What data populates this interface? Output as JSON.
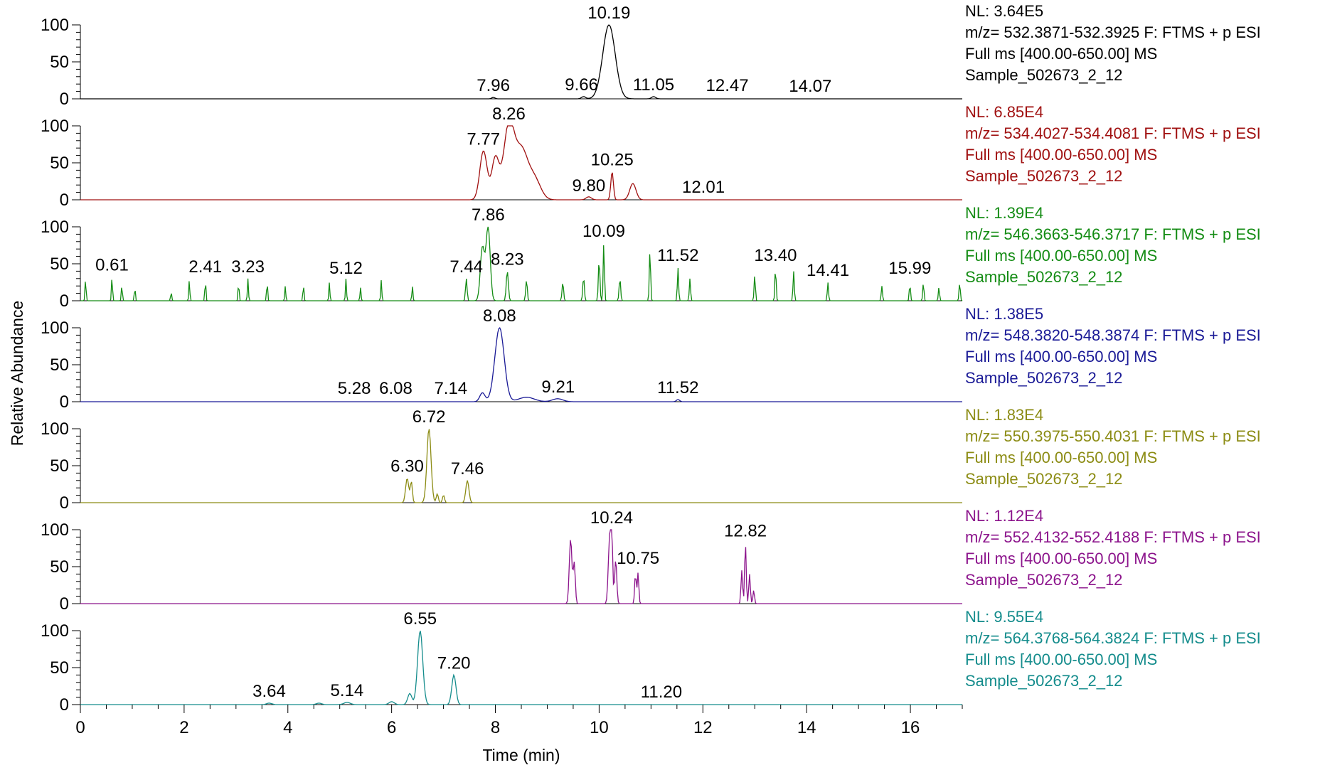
{
  "chart_data": {
    "type": "line",
    "xlabel": "Time (min)",
    "ylabel": "Relative Abundance",
    "xlim": [
      0,
      17
    ],
    "ylim": [
      0,
      100
    ],
    "xticks": [
      0,
      2,
      4,
      6,
      8,
      10,
      12,
      14,
      16
    ],
    "yticks": [
      0,
      50,
      100
    ],
    "panels": [
      {
        "color": "#000000",
        "nl": "NL: 3.64E5",
        "scan": "m/z= 532.3871-532.3925 F: FTMS + p ESI",
        "ms": "Full ms [400.00-650.00]  MS",
        "sample": "Sample_502673_2_12",
        "labels": [
          {
            "t": 7.96,
            "text": "7.96",
            "y": 2
          },
          {
            "t": 9.66,
            "text": "9.66",
            "y": 3
          },
          {
            "t": 10.19,
            "text": "10.19",
            "y": 100
          },
          {
            "t": 11.05,
            "text": "11.05",
            "y": 3
          },
          {
            "t": 12.47,
            "text": "12.47",
            "y": 2
          },
          {
            "t": 14.07,
            "text": "14.07",
            "y": 1
          }
        ],
        "peaks": [
          [
            10.19,
            100,
            0.12
          ],
          [
            9.7,
            3,
            0.04
          ],
          [
            11.05,
            3,
            0.04
          ],
          [
            7.96,
            2,
            0.03
          ]
        ]
      },
      {
        "color": "#a01010",
        "nl": "NL: 6.85E4",
        "scan": "m/z= 534.4027-534.4081 F: FTMS + p ESI",
        "ms": "Full ms [400.00-650.00]  MS",
        "sample": "Sample_502673_2_12",
        "labels": [
          {
            "t": 7.77,
            "text": "7.77",
            "y": 66
          },
          {
            "t": 8.26,
            "text": "8.26",
            "y": 100
          },
          {
            "t": 9.8,
            "text": "9.80",
            "y": 3
          },
          {
            "t": 10.25,
            "text": "10.25",
            "y": 38
          },
          {
            "t": 12.01,
            "text": "12.01",
            "y": 1
          }
        ],
        "peaks": [
          [
            7.77,
            66,
            0.07
          ],
          [
            8.0,
            56,
            0.07
          ],
          [
            8.26,
            100,
            0.1
          ],
          [
            8.5,
            65,
            0.12
          ],
          [
            8.75,
            28,
            0.12
          ],
          [
            9.8,
            4,
            0.05
          ],
          [
            10.25,
            38,
            0.025
          ],
          [
            10.65,
            22,
            0.06
          ]
        ]
      },
      {
        "color": "#148c14",
        "nl": "NL: 1.39E4",
        "scan": "m/z= 546.3663-546.3717 F: FTMS + p ESI",
        "ms": "Full ms [400.00-650.00]  MS",
        "sample": "Sample_502673_2_12",
        "labels": [
          {
            "t": 0.61,
            "text": "0.61",
            "y": 32
          },
          {
            "t": 2.41,
            "text": "2.41",
            "y": 30
          },
          {
            "t": 3.23,
            "text": "3.23",
            "y": 30
          },
          {
            "t": 5.12,
            "text": "5.12",
            "y": 28
          },
          {
            "t": 7.44,
            "text": "7.44",
            "y": 30
          },
          {
            "t": 7.86,
            "text": "7.86",
            "y": 100
          },
          {
            "t": 8.23,
            "text": "8.23",
            "y": 40
          },
          {
            "t": 10.09,
            "text": "10.09",
            "y": 78
          },
          {
            "t": 11.52,
            "text": "11.52",
            "y": 45
          },
          {
            "t": 13.4,
            "text": "13.40",
            "y": 45
          },
          {
            "t": 14.41,
            "text": "14.41",
            "y": 25
          },
          {
            "t": 15.99,
            "text": "15.99",
            "y": 28
          }
        ],
        "peaks": [
          [
            0.1,
            30,
            0.01
          ],
          [
            0.61,
            33,
            0.01
          ],
          [
            0.8,
            22,
            0.01
          ],
          [
            1.05,
            18,
            0.01
          ],
          [
            1.75,
            12,
            0.01
          ],
          [
            2.1,
            28,
            0.01
          ],
          [
            2.41,
            28,
            0.01
          ],
          [
            3.05,
            25,
            0.01
          ],
          [
            3.23,
            30,
            0.01
          ],
          [
            3.6,
            26,
            0.01
          ],
          [
            3.95,
            20,
            0.01
          ],
          [
            4.3,
            22,
            0.01
          ],
          [
            4.8,
            25,
            0.01
          ],
          [
            5.12,
            30,
            0.01
          ],
          [
            5.4,
            18,
            0.01
          ],
          [
            5.8,
            28,
            0.01
          ],
          [
            6.4,
            20,
            0.01
          ],
          [
            7.44,
            30,
            0.015
          ],
          [
            7.75,
            72,
            0.04
          ],
          [
            7.86,
            100,
            0.04
          ],
          [
            8.23,
            40,
            0.02
          ],
          [
            8.6,
            28,
            0.015
          ],
          [
            9.3,
            25,
            0.015
          ],
          [
            9.7,
            32,
            0.015
          ],
          [
            10.0,
            55,
            0.015
          ],
          [
            10.09,
            78,
            0.012
          ],
          [
            10.4,
            30,
            0.015
          ],
          [
            10.98,
            70,
            0.012
          ],
          [
            11.52,
            45,
            0.012
          ],
          [
            11.75,
            30,
            0.012
          ],
          [
            13.0,
            35,
            0.012
          ],
          [
            13.4,
            45,
            0.012
          ],
          [
            13.75,
            40,
            0.012
          ],
          [
            14.41,
            25,
            0.012
          ],
          [
            15.45,
            20,
            0.012
          ],
          [
            15.99,
            22,
            0.012
          ],
          [
            16.25,
            24,
            0.012
          ],
          [
            16.55,
            18,
            0.012
          ],
          [
            16.95,
            25,
            0.012
          ]
        ]
      },
      {
        "color": "#1a1a96",
        "nl": "NL: 1.38E5",
        "scan": "m/z= 548.3820-548.3874 F: FTMS + p ESI",
        "ms": "Full ms [400.00-650.00]  MS",
        "sample": "Sample_502673_2_12",
        "labels": [
          {
            "t": 5.28,
            "text": "5.28",
            "y": 2
          },
          {
            "t": 6.08,
            "text": "6.08",
            "y": 2
          },
          {
            "t": 7.14,
            "text": "7.14",
            "y": 2
          },
          {
            "t": 8.08,
            "text": "8.08",
            "y": 100
          },
          {
            "t": 9.21,
            "text": "9.21",
            "y": 4
          },
          {
            "t": 11.52,
            "text": "11.52",
            "y": 3
          }
        ],
        "peaks": [
          [
            8.08,
            100,
            0.09
          ],
          [
            7.75,
            12,
            0.05
          ],
          [
            8.6,
            6,
            0.15
          ],
          [
            9.2,
            4,
            0.1
          ],
          [
            11.52,
            3,
            0.03
          ]
        ]
      },
      {
        "color": "#8c8c14",
        "nl": "NL: 1.83E4",
        "scan": "m/z= 550.3975-550.4031 F: FTMS + p ESI",
        "ms": "Full ms [400.00-650.00]  MS",
        "sample": "Sample_502673_2_12",
        "labels": [
          {
            "t": 6.3,
            "text": "6.30",
            "y": 33
          },
          {
            "t": 6.72,
            "text": "6.72",
            "y": 100
          },
          {
            "t": 7.46,
            "text": "7.46",
            "y": 30
          }
        ],
        "peaks": [
          [
            6.3,
            33,
            0.03
          ],
          [
            6.38,
            28,
            0.02
          ],
          [
            6.72,
            100,
            0.04
          ],
          [
            6.88,
            12,
            0.02
          ],
          [
            7.0,
            10,
            0.02
          ],
          [
            7.46,
            30,
            0.03
          ]
        ]
      },
      {
        "color": "#8c148c",
        "nl": "NL: 1.12E4",
        "scan": "m/z= 552.4132-552.4188 F: FTMS + p ESI",
        "ms": "Full ms [400.00-650.00]  MS",
        "sample": "Sample_502673_2_12",
        "labels": [
          {
            "t": 10.24,
            "text": "10.24",
            "y": 100
          },
          {
            "t": 10.75,
            "text": "10.75",
            "y": 45
          },
          {
            "t": 12.82,
            "text": "12.82",
            "y": 82
          }
        ],
        "peaks": [
          [
            9.45,
            88,
            0.025
          ],
          [
            9.52,
            55,
            0.02
          ],
          [
            10.2,
            80,
            0.025
          ],
          [
            10.24,
            100,
            0.02
          ],
          [
            10.32,
            60,
            0.02
          ],
          [
            10.7,
            40,
            0.015
          ],
          [
            10.75,
            42,
            0.015
          ],
          [
            12.75,
            45,
            0.015
          ],
          [
            12.82,
            82,
            0.015
          ],
          [
            12.9,
            40,
            0.015
          ],
          [
            12.98,
            18,
            0.015
          ]
        ]
      },
      {
        "color": "#148c8c",
        "nl": "NL: 9.55E4",
        "scan": "m/z= 564.3768-564.3824 F: FTMS + p ESI",
        "ms": "Full ms [400.00-650.00]  MS",
        "sample": "Sample_502673_2_12",
        "labels": [
          {
            "t": 3.64,
            "text": "3.64",
            "y": 2
          },
          {
            "t": 5.14,
            "text": "5.14",
            "y": 3
          },
          {
            "t": 6.55,
            "text": "6.55",
            "y": 100
          },
          {
            "t": 7.2,
            "text": "7.20",
            "y": 40
          },
          {
            "t": 11.2,
            "text": "11.20",
            "y": 1
          }
        ],
        "peaks": [
          [
            6.55,
            100,
            0.05
          ],
          [
            6.35,
            15,
            0.04
          ],
          [
            7.2,
            40,
            0.04
          ],
          [
            6.0,
            4,
            0.05
          ],
          [
            5.14,
            3,
            0.06
          ],
          [
            3.64,
            2,
            0.05
          ],
          [
            4.6,
            2,
            0.05
          ]
        ]
      }
    ]
  }
}
